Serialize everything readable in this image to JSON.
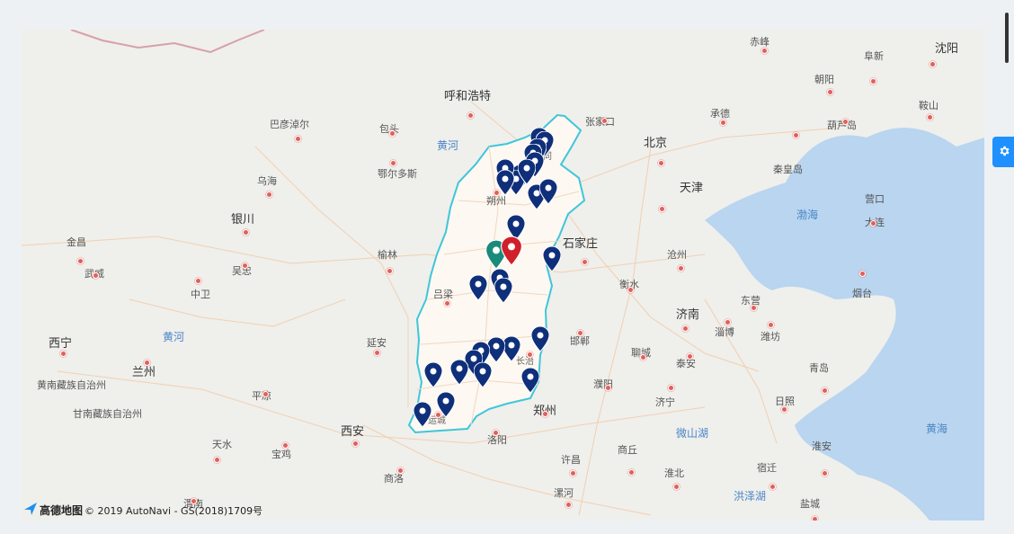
{
  "map": {
    "labels": [
      {
        "text": "呼和浩特",
        "cls": "big"
      },
      {
        "text": "北京",
        "cls": "big"
      },
      {
        "text": "天津",
        "cls": "big"
      },
      {
        "text": "石家庄",
        "cls": "big"
      },
      {
        "text": "沈阳",
        "cls": "big"
      },
      {
        "text": "银川",
        "cls": "big"
      },
      {
        "text": "西宁",
        "cls": "big"
      },
      {
        "text": "兰州",
        "cls": "big"
      },
      {
        "text": "西安",
        "cls": "big"
      },
      {
        "text": "郑州",
        "cls": "big"
      },
      {
        "text": "济南",
        "cls": "big"
      },
      {
        "text": "朔州",
        "cls": ""
      },
      {
        "text": "吕梁",
        "cls": ""
      },
      {
        "text": "运城",
        "cls": "small"
      },
      {
        "text": "长治",
        "cls": "small"
      },
      {
        "text": "大同",
        "cls": "small"
      },
      {
        "text": "包头",
        "cls": ""
      },
      {
        "text": "鄂尔多斯",
        "cls": ""
      },
      {
        "text": "巴彦淖尔",
        "cls": ""
      },
      {
        "text": "乌海",
        "cls": ""
      },
      {
        "text": "金昌",
        "cls": ""
      },
      {
        "text": "武威",
        "cls": ""
      },
      {
        "text": "中卫",
        "cls": ""
      },
      {
        "text": "吴忠",
        "cls": ""
      },
      {
        "text": "榆林",
        "cls": ""
      },
      {
        "text": "延安",
        "cls": ""
      },
      {
        "text": "平凉",
        "cls": ""
      },
      {
        "text": "天水",
        "cls": ""
      },
      {
        "text": "宝鸡",
        "cls": ""
      },
      {
        "text": "渭南",
        "cls": ""
      },
      {
        "text": "商洛",
        "cls": ""
      },
      {
        "text": "洛阳",
        "cls": ""
      },
      {
        "text": "许昌",
        "cls": ""
      },
      {
        "text": "漯河",
        "cls": ""
      },
      {
        "text": "商丘",
        "cls": ""
      },
      {
        "text": "淮北",
        "cls": ""
      },
      {
        "text": "宿迁",
        "cls": ""
      },
      {
        "text": "盐城",
        "cls": ""
      },
      {
        "text": "淮安",
        "cls": ""
      },
      {
        "text": "邯郸",
        "cls": ""
      },
      {
        "text": "聊城",
        "cls": ""
      },
      {
        "text": "泰安",
        "cls": ""
      },
      {
        "text": "济宁",
        "cls": ""
      },
      {
        "text": "濮阳",
        "cls": ""
      },
      {
        "text": "衡水",
        "cls": ""
      },
      {
        "text": "沧州",
        "cls": ""
      },
      {
        "text": "东营",
        "cls": ""
      },
      {
        "text": "淄博",
        "cls": ""
      },
      {
        "text": "潍坊",
        "cls": ""
      },
      {
        "text": "烟台",
        "cls": ""
      },
      {
        "text": "青岛",
        "cls": ""
      },
      {
        "text": "日照",
        "cls": ""
      },
      {
        "text": "大连",
        "cls": ""
      },
      {
        "text": "营口",
        "cls": ""
      },
      {
        "text": "葫芦岛",
        "cls": ""
      },
      {
        "text": "秦皇岛",
        "cls": ""
      },
      {
        "text": "承德",
        "cls": ""
      },
      {
        "text": "张家口",
        "cls": ""
      },
      {
        "text": "赤峰",
        "cls": ""
      },
      {
        "text": "阜新",
        "cls": ""
      },
      {
        "text": "朝阳",
        "cls": ""
      },
      {
        "text": "鞍山",
        "cls": ""
      },
      {
        "text": "黄南藏族自治州",
        "cls": ""
      },
      {
        "text": "甘南藏族自治州",
        "cls": ""
      },
      {
        "text": "渤海",
        "cls": "water"
      },
      {
        "text": "黄河",
        "cls": "water"
      },
      {
        "text": "黄河",
        "cls": "water"
      },
      {
        "text": "黄海",
        "cls": "water"
      },
      {
        "text": "微山湖",
        "cls": "water"
      },
      {
        "text": "洪泽湖",
        "cls": "water"
      }
    ],
    "pins": {
      "blue_count": 28,
      "green_count": 1,
      "red_count": 1,
      "blue_color": "#0f2f7a",
      "green_color": "#1a8a7a",
      "red_color": "#d0202a"
    },
    "province_border_color": "#3fc6d8",
    "province_fill": "#fdf8f2",
    "sea_color": "#b9d5ef"
  },
  "attribution": {
    "logo_text": "高德地图",
    "copyright": "© 2019 AutoNavi - GS(2018)1709号"
  },
  "settings_icon": "gear-icon"
}
